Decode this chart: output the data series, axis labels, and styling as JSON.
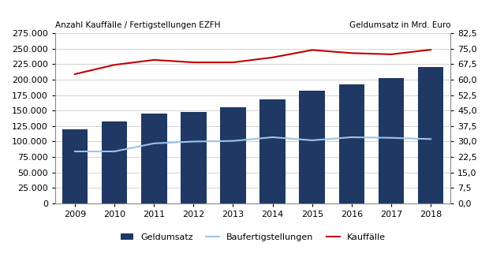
{
  "years": [
    2009,
    2010,
    2011,
    2012,
    2013,
    2014,
    2015,
    2016,
    2017,
    2018
  ],
  "geldumsatz": [
    120000,
    132000,
    145000,
    148000,
    155000,
    168000,
    182000,
    193000,
    202000,
    220000
  ],
  "baufertigstellungen": [
    84000,
    84000,
    97000,
    100000,
    101000,
    107000,
    102000,
    107000,
    106000,
    104000
  ],
  "kauffaelle": [
    209000,
    224000,
    232000,
    228000,
    228000,
    236000,
    248000,
    243000,
    241000,
    248500
  ],
  "bar_color": "#1F3864",
  "line_bau_color": "#9DC3E6",
  "line_kauf_color": "#C00000",
  "left_ylabel": "Anzahl Kauffälle / Fertigstellungen EZFH",
  "right_ylabel": "Geldumsatz in Mrd. Euro",
  "left_ylim": [
    0,
    275000
  ],
  "right_ylim": [
    0,
    82.5
  ],
  "left_yticks": [
    0,
    25000,
    50000,
    75000,
    100000,
    125000,
    150000,
    175000,
    200000,
    225000,
    250000,
    275000
  ],
  "right_yticks": [
    0.0,
    7.5,
    15.0,
    22.5,
    30.0,
    37.5,
    45.0,
    52.5,
    60.0,
    67.5,
    75.0,
    82.5
  ],
  "legend_labels": [
    "Geldumsatz",
    "Baufertigstellungen",
    "Kauffälle"
  ],
  "background_color": "#FFFFFF",
  "grid_color": "#C0C0C0",
  "scale_factor": 3333.33
}
